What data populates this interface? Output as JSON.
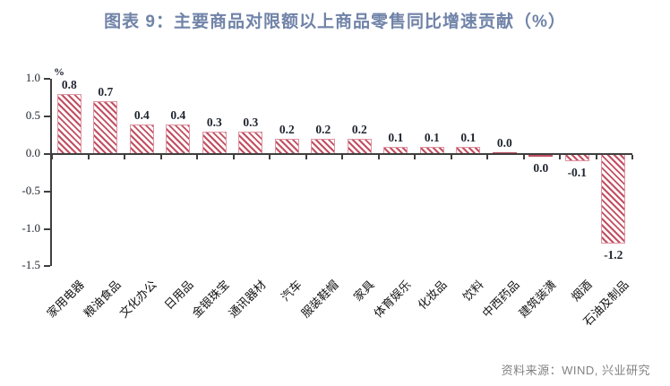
{
  "title": "图表 9：主要商品对限额以上商品零售同比增速贡献（%）",
  "source": "资料来源：WIND, 兴业研究",
  "colors": {
    "title": "#7083a8",
    "bar_stripe": "#c14f62",
    "bar_border": "#dd94a2",
    "bar_bg": "#fffafa",
    "axis": "#3f3f3f",
    "value_label": "#1e242e",
    "category_label": "#141414",
    "source_text": "#828282"
  },
  "chart_data": {
    "type": "bar",
    "title": "图表 9：主要商品对限额以上商品零售同比增速贡献（%）",
    "unit": "%",
    "categories": [
      "家用电器",
      "粮油食品",
      "文化办公",
      "日用品",
      "金银珠宝",
      "通讯器材",
      "汽车",
      "服装鞋帽",
      "家具",
      "体育娱乐",
      "化妆品",
      "饮料",
      "中西药品",
      "建筑装潢",
      "烟酒",
      "石油及制品"
    ],
    "values": [
      0.8,
      0.7,
      0.4,
      0.4,
      0.3,
      0.3,
      0.2,
      0.2,
      0.2,
      0.1,
      0.1,
      0.1,
      0.0,
      0.0,
      -0.1,
      -1.2
    ],
    "value_labels": [
      "0.8",
      "0.7",
      "0.4",
      "0.4",
      "0.3",
      "0.3",
      "0.2",
      "0.2",
      "0.2",
      "0.1",
      "0.1",
      "0.1",
      "0.0",
      "0.0",
      "-0.1",
      "-1.2"
    ],
    "label_positions": [
      "above",
      "above",
      "above",
      "above",
      "above",
      "above",
      "above",
      "above",
      "above",
      "above",
      "above",
      "above",
      "above",
      "below",
      "below",
      "below"
    ],
    "yticks": [
      "1.0",
      "0.5",
      "0.0",
      "-0.5",
      "-1.0",
      "-1.5"
    ],
    "ylim": [
      -1.5,
      1.0
    ],
    "xlabel": "",
    "ylabel": "%",
    "grid": false,
    "legend": false,
    "bar_style": "diagonal-hatch"
  }
}
